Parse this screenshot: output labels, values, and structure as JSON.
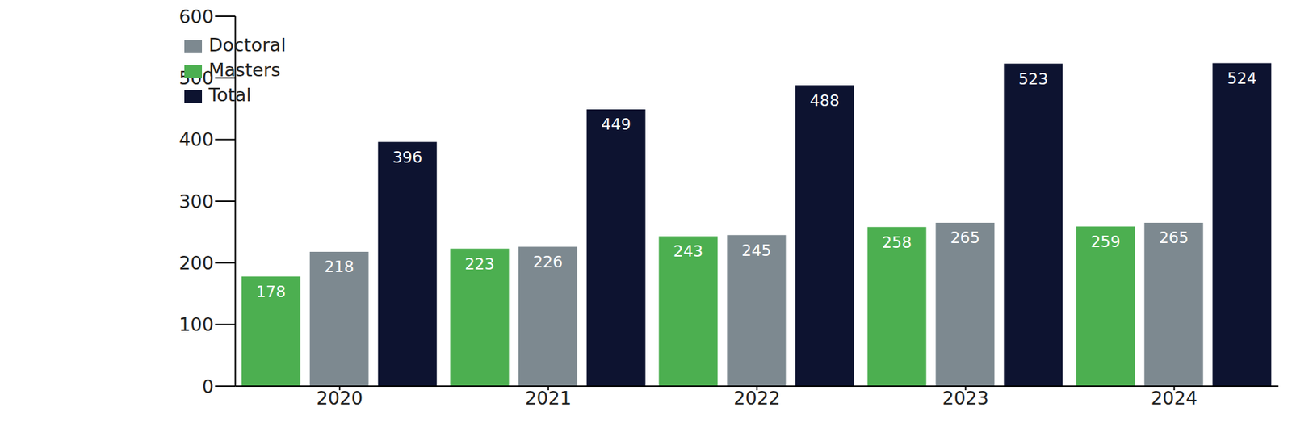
{
  "chart_data": {
    "type": "bar",
    "categories": [
      "2020",
      "2021",
      "2022",
      "2023",
      "2024"
    ],
    "series": [
      {
        "name": "Masters",
        "color": "#4caf50",
        "values": [
          178,
          223,
          243,
          258,
          259
        ]
      },
      {
        "name": "Doctoral",
        "color": "#7d8990",
        "values": [
          218,
          226,
          245,
          265,
          265
        ]
      },
      {
        "name": "Total",
        "color": "#0d1330",
        "values": [
          396,
          449,
          488,
          523,
          524
        ]
      }
    ],
    "ylim": [
      0,
      600
    ],
    "yticks": [
      0,
      100,
      200,
      300,
      400,
      500,
      600
    ],
    "grid": false,
    "legend": "top-left",
    "data_labels": true
  }
}
